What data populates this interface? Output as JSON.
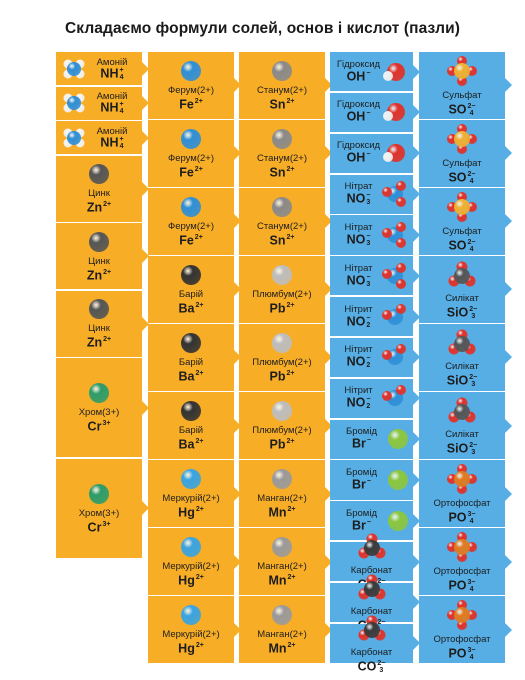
{
  "title": "Складаємо формули солей, основ і кислот (пазли)",
  "columns": [
    {
      "kind": "cation",
      "items": [
        {
          "name": "Амоній",
          "formula": "NH",
          "sub": "4",
          "sup": "+",
          "icon": "ammonium-molecule-icon",
          "layout": "side"
        },
        {
          "name": "Амоній",
          "formula": "NH",
          "sub": "4",
          "sup": "+",
          "icon": "ammonium-molecule-icon",
          "layout": "side"
        },
        {
          "name": "Амоній",
          "formula": "NH",
          "sub": "4",
          "sup": "+",
          "icon": "ammonium-molecule-icon",
          "layout": "side"
        },
        {
          "name": "Цинк",
          "formula": "Zn",
          "sub": "",
          "sup": "2+",
          "icon": "zinc-atom-icon",
          "color": "#555555"
        },
        {
          "name": "Цинк",
          "formula": "Zn",
          "sub": "",
          "sup": "2+",
          "icon": "zinc-atom-icon",
          "color": "#555555"
        },
        {
          "name": "Цинк",
          "formula": "Zn",
          "sub": "",
          "sup": "2+",
          "icon": "zinc-atom-icon",
          "color": "#555555"
        },
        {
          "name": "Хром(3+)",
          "formula": "Cr",
          "sub": "",
          "sup": "3+",
          "icon": "chromium-atom-icon",
          "color": "#2e9c6a"
        },
        {
          "name": "Хром(3+)",
          "formula": "Cr",
          "sub": "",
          "sup": "3+",
          "icon": "chromium-atom-icon",
          "color": "#2e9c6a"
        }
      ]
    },
    {
      "kind": "cation",
      "items": [
        {
          "name": "Ферум(2+)",
          "formula": "Fe",
          "sub": "",
          "sup": "2+",
          "icon": "iron-atom-icon",
          "color": "#2f8fd6"
        },
        {
          "name": "Ферум(2+)",
          "formula": "Fe",
          "sub": "",
          "sup": "2+",
          "icon": "iron-atom-icon",
          "color": "#2f8fd6"
        },
        {
          "name": "Ферум(2+)",
          "formula": "Fe",
          "sub": "",
          "sup": "2+",
          "icon": "iron-atom-icon",
          "color": "#2f8fd6"
        },
        {
          "name": "Барій",
          "formula": "Ba",
          "sub": "",
          "sup": "2+",
          "icon": "barium-atom-icon",
          "color": "#333333"
        },
        {
          "name": "Барій",
          "formula": "Ba",
          "sub": "",
          "sup": "2+",
          "icon": "barium-atom-icon",
          "color": "#333333"
        },
        {
          "name": "Барій",
          "formula": "Ba",
          "sub": "",
          "sup": "2+",
          "icon": "barium-atom-icon",
          "color": "#333333"
        },
        {
          "name": "Меркурій(2+)",
          "formula": "Hg",
          "sub": "",
          "sup": "2+",
          "icon": "mercury-atom-icon",
          "color": "#3aa4e0"
        },
        {
          "name": "Меркурій(2+)",
          "formula": "Hg",
          "sub": "",
          "sup": "2+",
          "icon": "mercury-atom-icon",
          "color": "#3aa4e0"
        },
        {
          "name": "Меркурій(2+)",
          "formula": "Hg",
          "sub": "",
          "sup": "2+",
          "icon": "mercury-atom-icon",
          "color": "#3aa4e0"
        }
      ]
    },
    {
      "kind": "cation",
      "items": [
        {
          "name": "Станум(2+)",
          "formula": "Sn",
          "sub": "",
          "sup": "2+",
          "icon": "tin-atom-icon",
          "color": "#8a8a8a"
        },
        {
          "name": "Станум(2+)",
          "formula": "Sn",
          "sub": "",
          "sup": "2+",
          "icon": "tin-atom-icon",
          "color": "#8a8a8a"
        },
        {
          "name": "Станум(2+)",
          "formula": "Sn",
          "sub": "",
          "sup": "2+",
          "icon": "tin-atom-icon",
          "color": "#8a8a8a"
        },
        {
          "name": "Плюмбум(2+)",
          "formula": "Pb",
          "sub": "",
          "sup": "2+",
          "icon": "lead-atom-icon",
          "color": "#bdbdbd"
        },
        {
          "name": "Плюмбум(2+)",
          "formula": "Pb",
          "sub": "",
          "sup": "2+",
          "icon": "lead-atom-icon",
          "color": "#bdbdbd"
        },
        {
          "name": "Плюмбум(2+)",
          "formula": "Pb",
          "sub": "",
          "sup": "2+",
          "icon": "lead-atom-icon",
          "color": "#bdbdbd"
        },
        {
          "name": "Манган(2+)",
          "formula": "Mn",
          "sub": "",
          "sup": "2+",
          "icon": "manganese-atom-icon",
          "color": "#9a9a9a"
        },
        {
          "name": "Манган(2+)",
          "formula": "Mn",
          "sub": "",
          "sup": "2+",
          "icon": "manganese-atom-icon",
          "color": "#9a9a9a"
        },
        {
          "name": "Манган(2+)",
          "formula": "Mn",
          "sub": "",
          "sup": "2+",
          "icon": "manganese-atom-icon",
          "color": "#9a9a9a"
        }
      ]
    },
    {
      "kind": "anion",
      "items": [
        {
          "name": "Гідроксид",
          "formula": "OH",
          "sub": "",
          "sup": "−",
          "icon": "hydroxide-molecule-icon",
          "layout": "side"
        },
        {
          "name": "Гідроксид",
          "formula": "OH",
          "sub": "",
          "sup": "−",
          "icon": "hydroxide-molecule-icon",
          "layout": "side"
        },
        {
          "name": "Гідроксид",
          "formula": "OH",
          "sub": "",
          "sup": "−",
          "icon": "hydroxide-molecule-icon",
          "layout": "side"
        },
        {
          "name": "Нітрат",
          "formula": "NO",
          "sub": "3",
          "sup": "−",
          "icon": "nitrate-molecule-icon",
          "layout": "side"
        },
        {
          "name": "Нітрат",
          "formula": "NO",
          "sub": "3",
          "sup": "−",
          "icon": "nitrate-molecule-icon",
          "layout": "side"
        },
        {
          "name": "Нітрат",
          "formula": "NO",
          "sub": "3",
          "sup": "−",
          "icon": "nitrate-molecule-icon",
          "layout": "side"
        },
        {
          "name": "Нітрит",
          "formula": "NO",
          "sub": "2",
          "sup": "−",
          "icon": "nitrite-molecule-icon",
          "layout": "side"
        },
        {
          "name": "Нітрит",
          "formula": "NO",
          "sub": "2",
          "sup": "−",
          "icon": "nitrite-molecule-icon",
          "layout": "side"
        },
        {
          "name": "Нітрит",
          "formula": "NO",
          "sub": "2",
          "sup": "−",
          "icon": "nitrite-molecule-icon",
          "layout": "side"
        },
        {
          "name": "Бромід",
          "formula": "Br",
          "sub": "",
          "sup": "−",
          "icon": "bromide-atom-icon",
          "layout": "side",
          "color": "#8cc63f"
        },
        {
          "name": "Бромід",
          "formula": "Br",
          "sub": "",
          "sup": "−",
          "icon": "bromide-atom-icon",
          "layout": "side",
          "color": "#8cc63f"
        },
        {
          "name": "Бромід",
          "formula": "Br",
          "sub": "",
          "sup": "−",
          "icon": "bromide-atom-icon",
          "layout": "side",
          "color": "#8cc63f"
        },
        {
          "name": "Карбонат",
          "formula": "CO",
          "sub": "3",
          "sup": "2−",
          "icon": "carbonate-molecule-icon"
        },
        {
          "name": "Карбонат",
          "formula": "CO",
          "sub": "3",
          "sup": "2−",
          "icon": "carbonate-molecule-icon"
        },
        {
          "name": "Карбонат",
          "formula": "CO",
          "sub": "3",
          "sup": "2−",
          "icon": "carbonate-molecule-icon"
        }
      ]
    },
    {
      "kind": "anion",
      "items": [
        {
          "name": "Сульфат",
          "formula": "SO",
          "sub": "4",
          "sup": "2−",
          "icon": "sulfate-molecule-icon"
        },
        {
          "name": "Сульфат",
          "formula": "SO",
          "sub": "4",
          "sup": "2−",
          "icon": "sulfate-molecule-icon"
        },
        {
          "name": "Сульфат",
          "formula": "SO",
          "sub": "4",
          "sup": "2−",
          "icon": "sulfate-molecule-icon"
        },
        {
          "name": "Силікат",
          "formula": "SiO",
          "sub": "3",
          "sup": "2−",
          "icon": "silicate-molecule-icon"
        },
        {
          "name": "Силікат",
          "formula": "SiO",
          "sub": "3",
          "sup": "2−",
          "icon": "silicate-molecule-icon"
        },
        {
          "name": "Силікат",
          "formula": "SiO",
          "sub": "3",
          "sup": "2−",
          "icon": "silicate-molecule-icon"
        },
        {
          "name": "Ортофосфат",
          "formula": "PO",
          "sub": "4",
          "sup": "3−",
          "icon": "orthophosphate-molecule-icon"
        },
        {
          "name": "Ортофосфат",
          "formula": "PO",
          "sub": "4",
          "sup": "3−",
          "icon": "orthophosphate-molecule-icon"
        },
        {
          "name": "Ортофосфат",
          "formula": "PO",
          "sub": "4",
          "sup": "3−",
          "icon": "orthophosphate-molecule-icon"
        }
      ]
    }
  ],
  "colors": {
    "cation_piece": "#f8ad27",
    "anion_piece": "#56aee4",
    "oxygen": "#e0322a",
    "hydrogen": "#f2f2f2",
    "nitrogen": "#2f8fd6",
    "carbon": "#3a3a3a",
    "sulfur": "#f0b030",
    "phosphorus": "#e07a20",
    "silicon": "#555555"
  }
}
